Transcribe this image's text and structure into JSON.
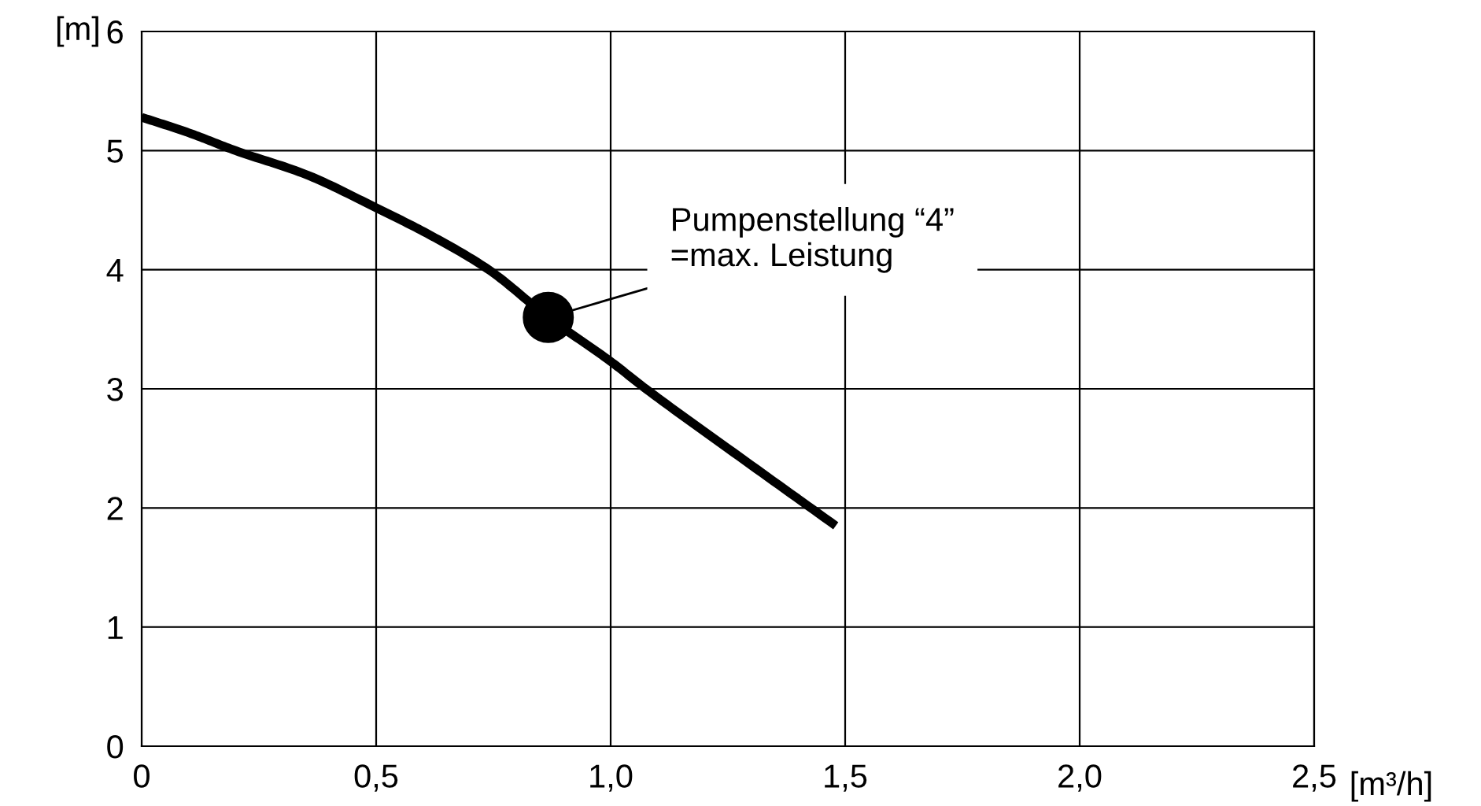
{
  "chart_data": {
    "type": "line",
    "xlabel": "[m³/h]",
    "ylabel": "[m]",
    "series": [
      {
        "color": "#000000",
        "x": [
          0,
          0.1,
          0.2,
          0.35,
          0.5,
          0.62,
          0.74,
          0.867,
          1.0,
          1.075,
          1.25,
          1.48
        ],
        "values": [
          5.28,
          5.15,
          5.0,
          4.8,
          4.52,
          4.28,
          4.0,
          3.6,
          3.23,
          3.0,
          2.5,
          1.85
        ]
      },
      {
        "type": "scatter",
        "color": "#000000",
        "x": [
          0.867
        ],
        "values": [
          3.6
        ]
      }
    ],
    "annotations": [
      {
        "text": "Pumpenstellung “4”\n=max. Leistung",
        "x": 0.867,
        "y": 3.6
      }
    ],
    "xlim": [
      0,
      2.5
    ],
    "ylim": [
      0,
      6
    ],
    "xticks": [
      0,
      {
        "value": 0.5,
        "label": "0,5"
      },
      {
        "value": 1.0,
        "label": "1,0"
      },
      {
        "value": 1.5,
        "label": "1,5"
      },
      {
        "value": 2.0,
        "label": "2,0"
      },
      {
        "value": 2.5,
        "label": "2,5"
      }
    ],
    "yticks": [
      0,
      1,
      2,
      3,
      4,
      5,
      6
    ],
    "grid": true
  }
}
